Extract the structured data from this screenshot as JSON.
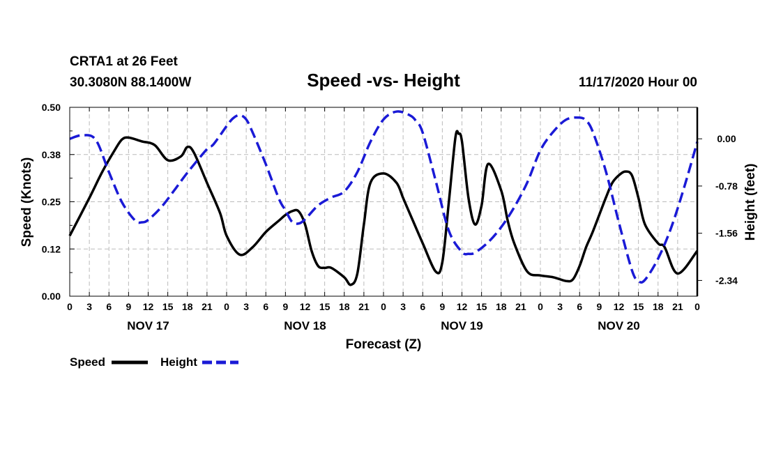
{
  "header": {
    "station": "CRTA1 at 26 Feet",
    "coords": "30.3080N 88.1400W",
    "title": "Speed -vs- Height",
    "timestamp": "11/17/2020 Hour 00"
  },
  "legend": {
    "speed_label": "Speed",
    "height_label": "Height"
  },
  "colors": {
    "speed": "#000000",
    "height": "#1a1ad6",
    "grid": "#bbbbbb"
  },
  "chart_data": {
    "type": "line",
    "title": "Speed -vs- Height",
    "xlabel": "Forecast (Z)",
    "ylabel": "Speed (Knots)",
    "y2label": "Height (feet)",
    "xlim": [
      0,
      96
    ],
    "ylim": [
      0,
      0.5
    ],
    "y2lim": [
      -2.6,
      0.52
    ],
    "grid": true,
    "legend_position": "bottom-left",
    "x_tick_labels": [
      "0",
      "3",
      "6",
      "9",
      "12",
      "15",
      "18",
      "21",
      "0",
      "3",
      "6",
      "9",
      "12",
      "15",
      "18",
      "21",
      "0",
      "3",
      "6",
      "9",
      "12",
      "15",
      "18",
      "21",
      "0",
      "3",
      "6",
      "9",
      "12",
      "15",
      "18",
      "21",
      "0"
    ],
    "day_labels": [
      {
        "label": "NOV 17",
        "hour": 12
      },
      {
        "label": "NOV 18",
        "hour": 36
      },
      {
        "label": "NOV 19",
        "hour": 60
      },
      {
        "label": "NOV 20",
        "hour": 84
      }
    ],
    "y_tick_labels": [
      "0.00",
      "0.12",
      "0.25",
      "0.38",
      "0.50"
    ],
    "y2_tick_labels": [
      "0.00",
      "-0.78",
      "-1.56",
      "-2.34"
    ],
    "y2_tick_values": [
      0.0,
      -0.78,
      -1.56,
      -2.34
    ],
    "series": [
      {
        "name": "Speed",
        "axis": "left",
        "style": "solid",
        "x": [
          0,
          3,
          5,
          7,
          8,
          9,
          11,
          13,
          15,
          17,
          18,
          19,
          21,
          23,
          24,
          26,
          28,
          30,
          32,
          33,
          34,
          35,
          36,
          37,
          38,
          39,
          40,
          42,
          43,
          44,
          45,
          46,
          48,
          50,
          51,
          52,
          54,
          56,
          57,
          58,
          59,
          59.5,
          60,
          61,
          62,
          63,
          64,
          66,
          67,
          68,
          70,
          72,
          74,
          76,
          77,
          78,
          79,
          80,
          82,
          83,
          84,
          85,
          86,
          87,
          88,
          90,
          91,
          93,
          96
        ],
        "values": [
          0.16,
          0.26,
          0.33,
          0.39,
          0.415,
          0.42,
          0.41,
          0.4,
          0.36,
          0.37,
          0.395,
          0.38,
          0.3,
          0.22,
          0.16,
          0.11,
          0.13,
          0.17,
          0.2,
          0.215,
          0.225,
          0.225,
          0.19,
          0.12,
          0.08,
          0.075,
          0.075,
          0.05,
          0.03,
          0.06,
          0.19,
          0.3,
          0.325,
          0.3,
          0.26,
          0.22,
          0.14,
          0.065,
          0.09,
          0.25,
          0.42,
          0.43,
          0.41,
          0.26,
          0.19,
          0.24,
          0.35,
          0.28,
          0.2,
          0.14,
          0.065,
          0.055,
          0.05,
          0.04,
          0.045,
          0.08,
          0.13,
          0.17,
          0.26,
          0.3,
          0.32,
          0.33,
          0.32,
          0.26,
          0.19,
          0.14,
          0.13,
          0.06,
          0.12
        ]
      },
      {
        "name": "Height",
        "axis": "right",
        "style": "dashed",
        "x": [
          0,
          2,
          4,
          6,
          8,
          10,
          11,
          12,
          14,
          16,
          18,
          21,
          22,
          24,
          25,
          26,
          27,
          28,
          30,
          32,
          33,
          34,
          35,
          36,
          38,
          40,
          42,
          44,
          46,
          48,
          50,
          52,
          53,
          54,
          56,
          58,
          60,
          61,
          62,
          64,
          66,
          68,
          70,
          72,
          74,
          76,
          78,
          79,
          80,
          82,
          84,
          86,
          87,
          88,
          90,
          92,
          94,
          96
        ],
        "values": [
          0.0,
          0.06,
          -0.02,
          -0.55,
          -1.05,
          -1.35,
          -1.38,
          -1.34,
          -1.13,
          -0.85,
          -0.56,
          -0.17,
          -0.09,
          0.21,
          0.34,
          0.39,
          0.32,
          0.1,
          -0.42,
          -0.99,
          -1.18,
          -1.37,
          -1.4,
          -1.33,
          -1.1,
          -0.97,
          -0.87,
          -0.55,
          -0.05,
          0.32,
          0.45,
          0.39,
          0.29,
          0.1,
          -0.7,
          -1.52,
          -1.87,
          -1.9,
          -1.88,
          -1.71,
          -1.46,
          -1.13,
          -0.72,
          -0.19,
          0.12,
          0.32,
          0.35,
          0.3,
          0.12,
          -0.53,
          -1.38,
          -2.17,
          -2.35,
          -2.33,
          -1.98,
          -1.47,
          -0.8,
          -0.05
        ]
      }
    ]
  }
}
